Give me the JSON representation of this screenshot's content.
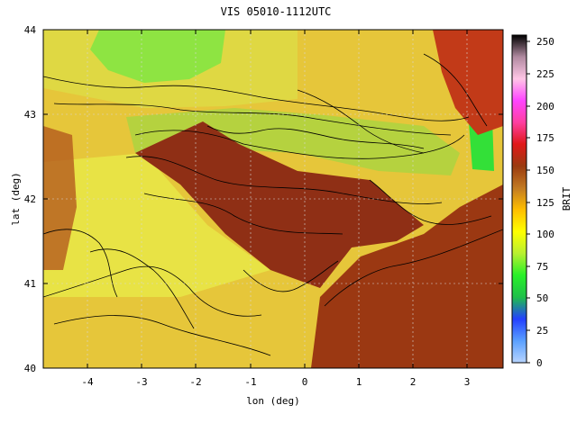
{
  "title": "VIS 05010-1112UTC",
  "x_axis": {
    "label": "lon (deg)",
    "ticks": [
      "-4",
      "-3",
      "-2",
      "-1",
      "0",
      "1",
      "2",
      "3"
    ]
  },
  "y_axis": {
    "label": "lat (deg)",
    "ticks": [
      "40",
      "41",
      "42",
      "43",
      "44"
    ]
  },
  "colorbar": {
    "label": "BRIT",
    "ticks": [
      "0",
      "25",
      "50",
      "75",
      "100",
      "125",
      "150",
      "175",
      "200",
      "225",
      "250"
    ],
    "colors": [
      "#b7d4ff",
      "#5aa0ff",
      "#2340ff",
      "#1fc04a",
      "#28f028",
      "#b8f030",
      "#ffff00",
      "#ffbf00",
      "#c27a22",
      "#9a3b10",
      "#e01818",
      "#ff3fa0",
      "#ff44ff",
      "#ffc6e6",
      "#b08aa0",
      "#000000"
    ]
  },
  "map": {
    "background_color": "#e6c63a",
    "land_color": "#f0c832",
    "cloud_color": "#8f2f15",
    "contour_color": "#000000"
  }
}
